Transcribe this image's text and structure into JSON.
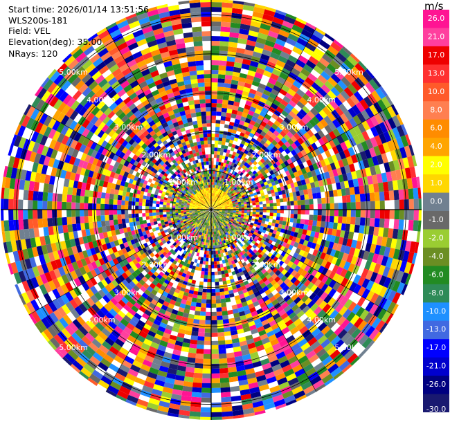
{
  "header": {
    "start_time": "Start time: 2026/01/14 13:51:56",
    "instrument": "WLS200s-181",
    "field": "Field: VEL",
    "elevation": "Elevation(deg): 35.00",
    "nrays": "NRays: 120"
  },
  "colorbar": {
    "unit": "m/s",
    "ticks": [
      "26.0",
      "21.0",
      "17.0",
      "13.0",
      "10.0",
      "8.0",
      "6.0",
      "4.0",
      "2.0",
      "1.0",
      "0.0",
      "-1.0",
      "-2.0",
      "-4.0",
      "-6.0",
      "-8.0",
      "-10.0",
      "-13.0",
      "-17.0",
      "-21.0",
      "-26.0",
      "-30.0"
    ],
    "colors": [
      "#ff1493",
      "#ff3f9e",
      "#ee0000",
      "#ff3030",
      "#ff5a2a",
      "#ff7f50",
      "#ff8c00",
      "#ffa500",
      "#ffff00",
      "#ffd700",
      "#708090",
      "#696969",
      "#9acd32",
      "#6b8e23",
      "#228b22",
      "#2e8b57",
      "#1e90ff",
      "#4169e1",
      "#0000ff",
      "#0000cd",
      "#000080",
      "#191970"
    ]
  },
  "chart_data": {
    "type": "ppi",
    "nrays": 120,
    "elevation_deg": 35.0,
    "field": "VEL",
    "units": "m/s",
    "range_ring_labels": [
      "1.00km",
      "2.00km",
      "3.00km",
      "4.00km",
      "5.00km"
    ],
    "range_rings_km": [
      1,
      2,
      3,
      4,
      5
    ],
    "max_range_km": 5.4,
    "color_levels": [
      -30,
      -26,
      -21,
      -17,
      -13,
      -10,
      -8,
      -6,
      -4,
      -2,
      -1,
      0,
      1,
      2,
      4,
      6,
      8,
      10,
      13,
      17,
      21,
      26,
      30
    ]
  }
}
